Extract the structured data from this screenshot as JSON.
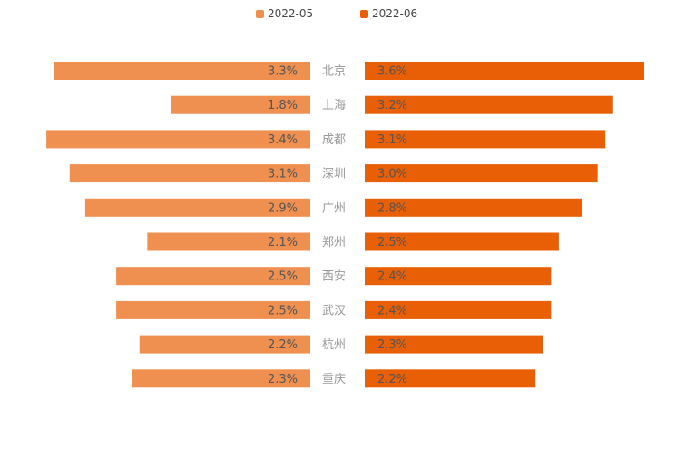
{
  "chart_data": {
    "type": "bar",
    "orientation": "horizontal",
    "layout": "back-to-back",
    "categories": [
      "北京",
      "上海",
      "成都",
      "深圳",
      "广州",
      "郑州",
      "西安",
      "武汉",
      "杭州",
      "重庆"
    ],
    "series": [
      {
        "name": "2022-05",
        "color": "#f09050",
        "side": "left",
        "values": [
          3.3,
          1.8,
          3.4,
          3.1,
          2.9,
          2.1,
          2.5,
          2.5,
          2.2,
          2.3
        ],
        "labels": [
          "3.3%",
          "1.8%",
          "3.4%",
          "3.1%",
          "2.9%",
          "2.1%",
          "2.5%",
          "2.5%",
          "2.2%",
          "2.3%"
        ]
      },
      {
        "name": "2022-06",
        "color": "#e85f05",
        "side": "right",
        "values": [
          3.6,
          3.2,
          3.1,
          3.0,
          2.8,
          2.5,
          2.4,
          2.4,
          2.3,
          2.2
        ],
        "labels": [
          "3.6%",
          "3.2%",
          "3.1%",
          "3.0%",
          "2.8%",
          "2.5%",
          "2.4%",
          "2.4%",
          "2.3%",
          "2.2%"
        ]
      }
    ],
    "legend_position": "top-center",
    "grid": false,
    "category_label_color": "#999999",
    "value_label_color": "#555555"
  }
}
